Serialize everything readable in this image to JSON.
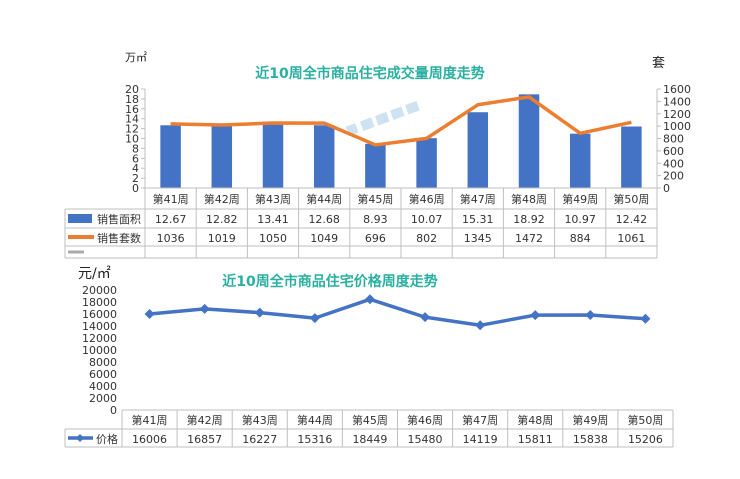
{
  "chart_data": [
    {
      "type": "bar+line",
      "title": "近10周全市商品住宅成交量周度走势",
      "ylabel_left": "万㎡",
      "ylabel_right": "套",
      "ylim_left": [
        0,
        20
      ],
      "yticks_left": [
        0,
        2,
        4,
        6,
        8,
        10,
        12,
        14,
        16,
        18,
        20
      ],
      "ylim_right": [
        0,
        1600
      ],
      "yticks_right": [
        0,
        200,
        400,
        600,
        800,
        1000,
        1200,
        1400,
        1600
      ],
      "categories": [
        "第41周",
        "第42周",
        "第43周",
        "第44周",
        "第45周",
        "第46周",
        "第47周",
        "第48周",
        "第49周",
        "第50周"
      ],
      "series": [
        {
          "name": "销售面积",
          "type": "bar",
          "axis": "left",
          "color": "#4472C4",
          "values": [
            "12.67",
            "12.82",
            "13.41",
            "12.68",
            "8.93",
            "10.07",
            "15.31",
            "18.92",
            "10.97",
            "12.42"
          ]
        },
        {
          "name": "销售套数",
          "type": "line",
          "axis": "right",
          "color": "#ED7D31",
          "values": [
            1036,
            1019,
            1050,
            1049,
            696,
            802,
            1345,
            1472,
            884,
            1061
          ]
        }
      ],
      "legend_placement": "data-table-bottom"
    },
    {
      "type": "line",
      "title": "近10周全市商品住宅价格周度走势",
      "ylabel": "元/㎡",
      "ylim": [
        0,
        20000
      ],
      "yticks": [
        0,
        2000,
        4000,
        6000,
        8000,
        10000,
        12000,
        14000,
        16000,
        18000,
        20000
      ],
      "categories": [
        "第41周",
        "第42周",
        "第43周",
        "第44周",
        "第45周",
        "第46周",
        "第47周",
        "第48周",
        "第49周",
        "第50周"
      ],
      "series": [
        {
          "name": "价格",
          "color": "#4472C4",
          "values": [
            16006,
            16857,
            16227,
            15316,
            18449,
            15480,
            14119,
            15811,
            15838,
            15206
          ]
        }
      ],
      "legend_placement": "data-table-bottom"
    }
  ]
}
